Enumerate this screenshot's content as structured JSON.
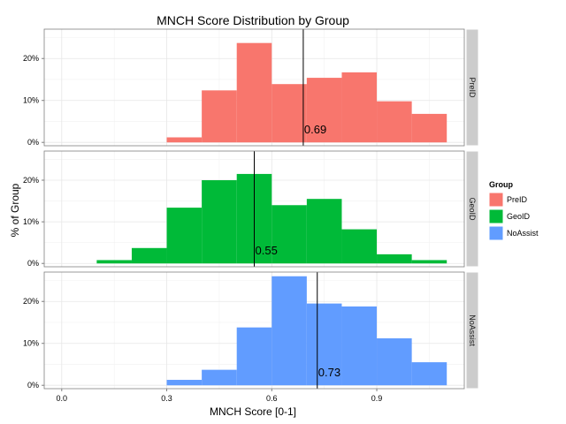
{
  "chart_data": {
    "type": "bar",
    "title": "MNCH Score Distribution by Group",
    "xlabel": "MNCH Score [0-1]",
    "ylabel": "% of Group",
    "xlim": [
      -0.05,
      1.15
    ],
    "ylim": [
      -0.008,
      0.27
    ],
    "x_ticks": [
      0.0,
      0.3,
      0.6,
      0.9
    ],
    "x_tick_labels": [
      "0.0",
      "0.3",
      "0.6",
      "0.9"
    ],
    "y_ticks": [
      0.0,
      0.1,
      0.2
    ],
    "y_tick_labels": [
      "0%",
      "10%",
      "20%"
    ],
    "bin_edges": [
      0.1,
      0.2,
      0.3,
      0.4,
      0.5,
      0.6,
      0.7,
      0.8,
      0.9,
      1.0,
      1.1
    ],
    "grid": true,
    "facet": "rows",
    "legend": {
      "title": "Group",
      "position": "right"
    },
    "series": [
      {
        "name": "PreID",
        "color": "#F8766D",
        "values": [
          0.0,
          0.0,
          0.012,
          0.124,
          0.237,
          0.139,
          0.154,
          0.167,
          0.098,
          0.068
        ],
        "vline": 0.69,
        "vline_label": "0.69"
      },
      {
        "name": "GeoID",
        "color": "#00BA38",
        "values": [
          0.008,
          0.037,
          0.134,
          0.2,
          0.215,
          0.14,
          0.155,
          0.082,
          0.022,
          0.008
        ],
        "vline": 0.55,
        "vline_label": "0.55"
      },
      {
        "name": "NoAssist",
        "color": "#619CFF",
        "values": [
          0.0,
          0.0,
          0.013,
          0.037,
          0.138,
          0.26,
          0.195,
          0.188,
          0.112,
          0.055
        ],
        "vline": 0.73,
        "vline_label": "0.73"
      }
    ]
  }
}
